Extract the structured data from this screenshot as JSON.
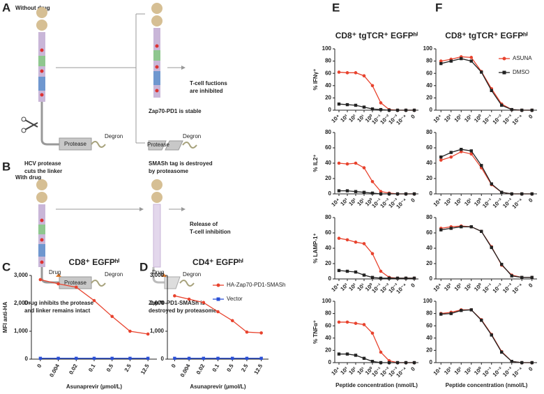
{
  "panel_labels": [
    "A",
    "B",
    "C",
    "D",
    "E",
    "F"
  ],
  "diagram_a": {
    "condition": "Without drug",
    "outcome": [
      "T-cell fuctions",
      "are inhibited"
    ],
    "stable": "Zap70-PD1 is stable",
    "protease": [
      "Protease",
      "Protease"
    ],
    "degron": [
      "Degron",
      "Degron"
    ],
    "cut_caption": [
      "HCV protease",
      "cuts the linker"
    ],
    "destroyed_caption": [
      "SMASh tag is destroyed",
      "by proteasome"
    ]
  },
  "diagram_b": {
    "condition": "With drug",
    "outcome": [
      "Release of",
      "T-cell inhibition"
    ],
    "drug": [
      "Drug",
      "Drug"
    ],
    "protease": [
      "Protease",
      "Protease"
    ],
    "degron": [
      "Degron",
      "Degron"
    ],
    "intact_caption": [
      "Drug inhibits the protease",
      "and linker remains intact"
    ],
    "destroyed_caption": [
      "Zap70-PD1-SMASh is",
      "destroyed by proteasome"
    ]
  },
  "chart_data": [
    {
      "type": "line",
      "title": "CD8⁺ EGFPʰⁱ",
      "y_label": "MFI anti-HA",
      "x_label": "Asunaprevir (µmol/L)",
      "categories": [
        "0",
        "0.004",
        "0.02",
        "0.1",
        "0.5",
        "2.5",
        "12.5"
      ],
      "ylim": [
        0,
        3000
      ],
      "yticks": [
        0,
        {
          "value": 1000,
          "label": "1,000"
        },
        {
          "value": 2000,
          "label": "2,000"
        },
        {
          "value": 3000,
          "label": "3,000"
        }
      ],
      "series": [
        {
          "color": "#e8432e",
          "marker": "circle",
          "values": [
            2850,
            2700,
            2580,
            2100,
            1530,
            1000,
            900
          ]
        },
        {
          "color": "#2a4fd6",
          "marker": "square",
          "values": [
            30,
            30,
            30,
            30,
            30,
            30,
            30
          ]
        }
      ]
    },
    {
      "type": "line",
      "title": "CD4⁺ EGFPʰⁱ",
      "x_label": "Asunaprevir (µmol/L)",
      "categories": [
        "0",
        "0.004",
        "0.02",
        "0.1",
        "0.5",
        "2.5",
        "12.5"
      ],
      "ylim": [
        0,
        3000
      ],
      "yticks": [
        0,
        {
          "value": 1000,
          "label": "1,000"
        },
        {
          "value": 2000,
          "label": "2,000"
        },
        {
          "value": 3000,
          "label": "3,000"
        }
      ],
      "legend": "upper right",
      "series": [
        {
          "name": "HA-Zap70-PD1-SMASh",
          "color": "#e8432e",
          "marker": "circle",
          "values": [
            2270,
            2150,
            2030,
            1700,
            1380,
            970,
            940
          ]
        },
        {
          "name": "Vector",
          "color": "#2a4fd6",
          "marker": "square",
          "values": [
            30,
            30,
            30,
            30,
            30,
            30,
            30
          ]
        }
      ]
    },
    {
      "type": "line",
      "title": "CD8⁺ tgTCR⁺ EGFPʰⁱ",
      "y_label": "% IFNγ⁺",
      "categories": [
        "10⁴",
        "10³",
        "10²",
        "10¹",
        "10⁰",
        "10⁻¹",
        "10⁻²",
        "10⁻³",
        "10⁻⁴",
        "0"
      ],
      "ylim": [
        0,
        100
      ],
      "yticks": [
        0,
        20,
        40,
        60,
        80,
        100
      ],
      "series": [
        {
          "color": "#e8432e",
          "marker": "circle",
          "values": [
            62,
            61,
            61,
            56,
            40,
            12,
            1,
            0,
            0,
            0
          ]
        },
        {
          "color": "#222222",
          "marker": "square",
          "values": [
            10,
            9,
            8,
            5,
            2,
            1,
            0,
            0,
            0,
            0
          ]
        }
      ]
    },
    {
      "type": "line",
      "y_label": "% IL2⁺",
      "categories": [
        "10⁴",
        "10³",
        "10²",
        "10¹",
        "10⁰",
        "10⁻¹",
        "10⁻²",
        "10⁻³",
        "10⁻⁴",
        "0"
      ],
      "ylim": [
        0,
        80
      ],
      "yticks": [
        0,
        20,
        40,
        60,
        80
      ],
      "series": [
        {
          "color": "#e8432e",
          "marker": "circle",
          "values": [
            40,
            39,
            40,
            34,
            16,
            3,
            1,
            0,
            0,
            0
          ]
        },
        {
          "color": "#222222",
          "marker": "square",
          "values": [
            4,
            4,
            3,
            2,
            1,
            0,
            0,
            0,
            0,
            0
          ]
        }
      ]
    },
    {
      "type": "line",
      "y_label": "% LAMP-1⁺",
      "categories": [
        "10⁴",
        "10³",
        "10²",
        "10¹",
        "10⁰",
        "10⁻¹",
        "10⁻²",
        "10⁻³",
        "10⁻⁴",
        "0"
      ],
      "ylim": [
        0,
        80
      ],
      "yticks": [
        0,
        20,
        40,
        60,
        80
      ],
      "series": [
        {
          "color": "#e8432e",
          "marker": "circle",
          "values": [
            53,
            51,
            48,
            46,
            33,
            10,
            2,
            1,
            1,
            1
          ]
        },
        {
          "color": "#222222",
          "marker": "square",
          "values": [
            11,
            10,
            9,
            5,
            2,
            1,
            1,
            1,
            1,
            1
          ]
        }
      ]
    },
    {
      "type": "line",
      "y_label": "% TNFα⁺",
      "x_label": "Peptide concentration (nmol/L)",
      "categories": [
        "10⁴",
        "10³",
        "10²",
        "10¹",
        "10⁰",
        "10⁻¹",
        "10⁻²",
        "10⁻³",
        "10⁻⁴",
        "0"
      ],
      "ylim": [
        0,
        100
      ],
      "yticks": [
        0,
        20,
        40,
        60,
        80,
        100
      ],
      "series": [
        {
          "color": "#e8432e",
          "marker": "circle",
          "values": [
            66,
            66,
            64,
            62,
            48,
            17,
            3,
            0,
            0,
            0
          ]
        },
        {
          "color": "#222222",
          "marker": "square",
          "values": [
            14,
            14,
            12,
            7,
            2,
            0,
            0,
            0,
            0,
            0
          ]
        }
      ]
    },
    {
      "type": "line",
      "title": "CD8⁺ tgTCR⁺ EGFPʰⁱ",
      "categories": [
        "10⁴",
        "10³",
        "10²",
        "10¹",
        "10⁰",
        "10⁻¹",
        "10⁻²",
        "10⁻³",
        "10⁻⁴",
        "0"
      ],
      "ylim": [
        0,
        100
      ],
      "yticks": [
        0,
        20,
        40,
        60,
        80,
        100
      ],
      "legend": "upper right",
      "series": [
        {
          "name": "ASUNA",
          "color": "#e8432e",
          "marker": "circle",
          "values": [
            80,
            83,
            87,
            86,
            63,
            35,
            10,
            1,
            0,
            0
          ]
        },
        {
          "name": "DMSO",
          "color": "#222222",
          "marker": "square",
          "values": [
            76,
            80,
            84,
            80,
            62,
            32,
            8,
            1,
            0,
            0
          ]
        }
      ]
    },
    {
      "type": "line",
      "categories": [
        "10⁴",
        "10³",
        "10²",
        "10¹",
        "10⁰",
        "10⁻¹",
        "10⁻²",
        "10⁻³",
        "10⁻⁴",
        "0"
      ],
      "ylim": [
        0,
        80
      ],
      "yticks": [
        0,
        20,
        40,
        60,
        80
      ],
      "series": [
        {
          "color": "#e8432e",
          "marker": "circle",
          "values": [
            44,
            48,
            55,
            52,
            34,
            12,
            2,
            0,
            0,
            0
          ]
        },
        {
          "color": "#222222",
          "marker": "square",
          "values": [
            48,
            54,
            58,
            56,
            37,
            13,
            2,
            0,
            0,
            0
          ]
        }
      ]
    },
    {
      "type": "line",
      "categories": [
        "10⁴",
        "10³",
        "10²",
        "10¹",
        "10⁰",
        "10⁻¹",
        "10⁻²",
        "10⁻³",
        "10⁻⁴",
        "0"
      ],
      "ylim": [
        0,
        80
      ],
      "yticks": [
        0,
        20,
        40,
        60,
        80
      ],
      "series": [
        {
          "color": "#e8432e",
          "marker": "circle",
          "values": [
            66,
            68,
            69,
            68,
            62,
            42,
            18,
            5,
            2,
            2
          ]
        },
        {
          "color": "#222222",
          "marker": "square",
          "values": [
            64,
            66,
            68,
            68,
            62,
            41,
            19,
            4,
            2,
            2
          ]
        }
      ]
    },
    {
      "type": "line",
      "x_label": "Peptide concentration (nmol/L)",
      "categories": [
        "10⁴",
        "10³",
        "10²",
        "10¹",
        "10⁰",
        "10⁻¹",
        "10⁻²",
        "10⁻³",
        "10⁻⁴",
        "0"
      ],
      "ylim": [
        0,
        100
      ],
      "yticks": [
        0,
        20,
        40,
        60,
        80,
        100
      ],
      "series": [
        {
          "color": "#e8432e",
          "marker": "circle",
          "values": [
            80,
            82,
            86,
            86,
            70,
            46,
            18,
            2,
            0,
            0
          ]
        },
        {
          "color": "#222222",
          "marker": "square",
          "values": [
            79,
            80,
            85,
            86,
            69,
            45,
            17,
            2,
            0,
            0
          ]
        }
      ]
    }
  ]
}
